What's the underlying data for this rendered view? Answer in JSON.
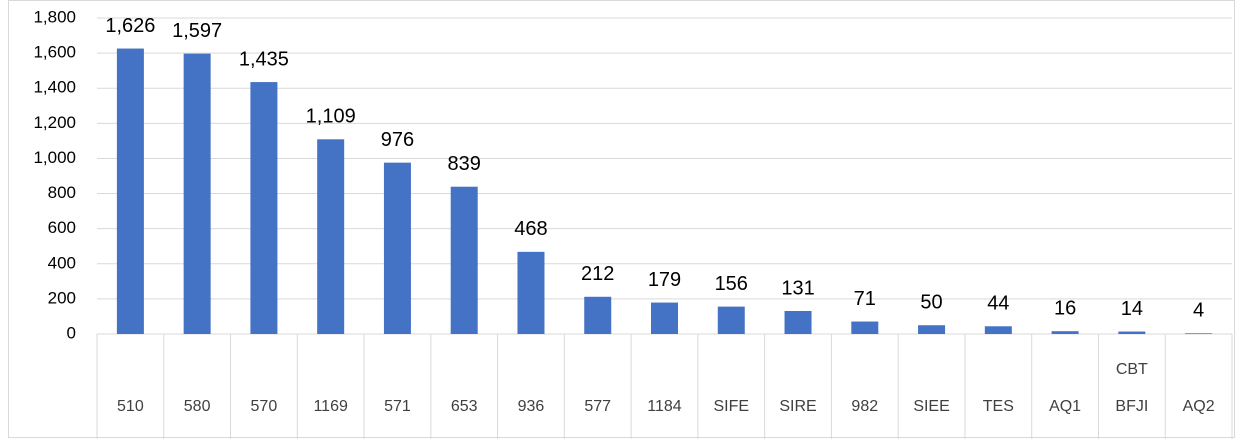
{
  "chart_data": {
    "type": "bar",
    "categories": [
      "510",
      "580",
      "570",
      "1169",
      "571",
      "653",
      "936",
      "577",
      "1184",
      "SIFE",
      "SIRE",
      "982",
      "SIEE",
      "TES",
      "AQ1",
      "CBT\nBFJI",
      "AQ2"
    ],
    "values": [
      1626,
      1597,
      1435,
      1109,
      976,
      839,
      468,
      212,
      179,
      156,
      131,
      71,
      50,
      44,
      16,
      14,
      4
    ],
    "value_labels": [
      "1,626",
      "1,597",
      "1,435",
      "1,109",
      "976",
      "839",
      "468",
      "212",
      "179",
      "156",
      "131",
      "71",
      "50",
      "44",
      "16",
      "14",
      "4"
    ],
    "color": "#4472c4",
    "ylim": [
      0,
      1800
    ],
    "yticks": [
      0,
      200,
      400,
      600,
      800,
      {
        "value": 1000,
        "label": "1,000"
      },
      {
        "value": 1200,
        "label": "1,200"
      },
      {
        "value": 1400,
        "label": "1,400"
      },
      {
        "value": 1600,
        "label": "1,600"
      },
      {
        "value": 1800,
        "label": "1,800"
      }
    ],
    "grid": true
  }
}
